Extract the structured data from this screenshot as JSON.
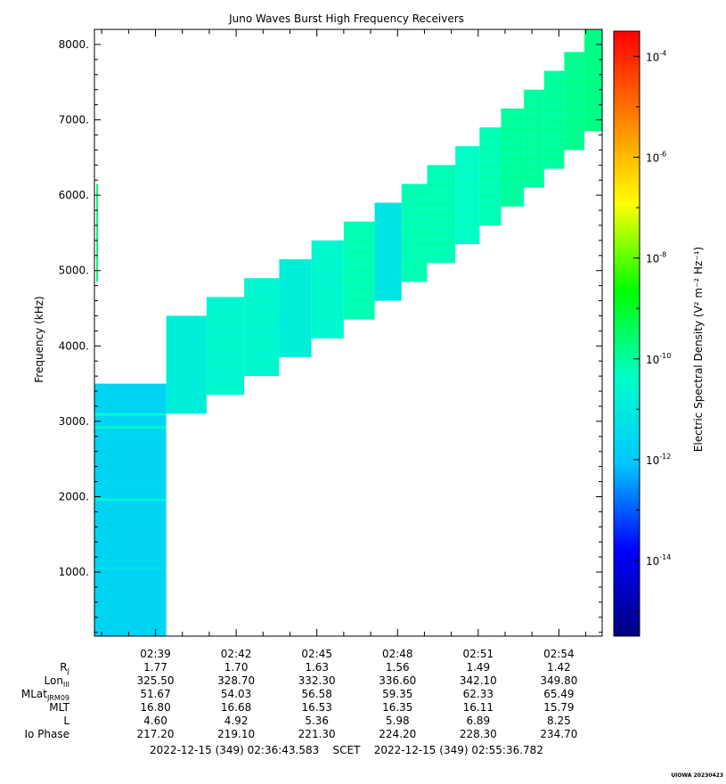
{
  "chart_data": {
    "type": "heatmap",
    "title": "Juno Waves Burst High Frequency Receivers",
    "ylabel": "Frequency (kHz)",
    "ylim": [
      150,
      8200
    ],
    "yticks": [
      1000,
      2000,
      3000,
      4000,
      5000,
      6000,
      7000,
      8000
    ],
    "ytick_labels": [
      "1000.",
      "2000.",
      "3000.",
      "4000.",
      "5000.",
      "6000.",
      "7000.",
      "8000."
    ],
    "x_range_minutes": [
      156.73,
      175.61
    ],
    "xtick_labels": [
      "02:39",
      "02:42",
      "02:45",
      "02:48",
      "02:51",
      "02:54"
    ],
    "colorbar": {
      "label": "Electric Spectral Density (V² m⁻² Hz⁻¹)",
      "log_range": [
        -15.5,
        -3.5
      ],
      "ticks": [
        {
          "base": "10",
          "exp": "-4",
          "log": -4
        },
        {
          "base": "10",
          "exp": "-6",
          "log": -6
        },
        {
          "base": "10",
          "exp": "-8",
          "log": -8
        },
        {
          "base": "10",
          "exp": "-10",
          "log": -10
        },
        {
          "base": "10",
          "exp": "-12",
          "log": -12
        },
        {
          "base": "10",
          "exp": "-14",
          "log": -14
        }
      ],
      "colors": [
        "#000080",
        "#0000ff",
        "#00c8ff",
        "#00ffc8",
        "#00ff00",
        "#ffff00",
        "#ff8000",
        "#ff0000"
      ]
    },
    "blocks": [
      {
        "t0": 156.73,
        "t1": 159.4,
        "f0": 150,
        "f1": 3500,
        "log": -11.7
      },
      {
        "t0": 159.4,
        "t1": 160.9,
        "f0": 3100,
        "f1": 4400,
        "log": -10.9
      },
      {
        "t0": 160.9,
        "t1": 162.3,
        "f0": 3350,
        "f1": 4650,
        "log": -10.6
      },
      {
        "t0": 162.3,
        "t1": 163.6,
        "f0": 3600,
        "f1": 4900,
        "log": -10.6
      },
      {
        "t0": 163.6,
        "t1": 164.8,
        "f0": 3850,
        "f1": 5150,
        "log": -10.9
      },
      {
        "t0": 164.8,
        "t1": 166.0,
        "f0": 4100,
        "f1": 5400,
        "log": -10.6
      },
      {
        "t0": 166.0,
        "t1": 167.15,
        "f0": 4350,
        "f1": 5650,
        "log": -10.2
      },
      {
        "t0": 167.15,
        "t1": 168.15,
        "f0": 4600,
        "f1": 5900,
        "log": -11.2
      },
      {
        "t0": 168.15,
        "t1": 169.1,
        "f0": 4850,
        "f1": 6150,
        "log": -10.2
      },
      {
        "t0": 169.1,
        "t1": 170.15,
        "f0": 5100,
        "f1": 6400,
        "log": -10.2
      },
      {
        "t0": 170.15,
        "t1": 171.05,
        "f0": 5350,
        "f1": 6650,
        "log": -10.4
      },
      {
        "t0": 171.05,
        "t1": 171.85,
        "f0": 5600,
        "f1": 6900,
        "log": -10.2
      },
      {
        "t0": 171.85,
        "t1": 172.7,
        "f0": 5850,
        "f1": 7150,
        "log": -10.0
      },
      {
        "t0": 172.7,
        "t1": 173.45,
        "f0": 6100,
        "f1": 7400,
        "log": -10.0
      },
      {
        "t0": 173.45,
        "t1": 174.2,
        "f0": 6350,
        "f1": 7650,
        "log": -10.0
      },
      {
        "t0": 174.2,
        "t1": 174.95,
        "f0": 6600,
        "f1": 7900,
        "log": -9.9
      },
      {
        "t0": 174.95,
        "t1": 175.61,
        "f0": 6850,
        "f1": 8200,
        "log": -9.8
      }
    ],
    "lines": [
      {
        "t0": 156.73,
        "t1": 159.4,
        "f": 2920,
        "log": -10.6
      },
      {
        "t0": 156.73,
        "t1": 159.4,
        "f": 3090,
        "log": -10.4
      },
      {
        "t0": 156.73,
        "t1": 159.4,
        "f": 1960,
        "log": -10.8
      },
      {
        "t0": 156.73,
        "t1": 159.4,
        "f": 1050,
        "log": -11.3
      }
    ],
    "spikes": [
      {
        "t": 156.83,
        "f0": 4850,
        "f1": 6150,
        "log": -9.6
      }
    ],
    "ephemeris": {
      "labels": [
        {
          "main": "R",
          "sub": "J"
        },
        {
          "main": "Lon",
          "sub": "III"
        },
        {
          "main": "MLat",
          "sub": "JRM09"
        },
        {
          "main": "MLT",
          "sub": ""
        },
        {
          "main": "L",
          "sub": ""
        },
        {
          "main": "Io Phase",
          "sub": ""
        }
      ],
      "columns": [
        [
          "1.77",
          "325.50",
          "51.67",
          "16.80",
          "4.60",
          "217.20"
        ],
        [
          "1.70",
          "328.70",
          "54.03",
          "16.68",
          "4.92",
          "219.10"
        ],
        [
          "1.63",
          "332.30",
          "56.58",
          "16.53",
          "5.36",
          "221.30"
        ],
        [
          "1.56",
          "336.60",
          "59.35",
          "16.35",
          "5.98",
          "224.20"
        ],
        [
          "1.49",
          "342.10",
          "62.33",
          "16.11",
          "6.89",
          "228.30"
        ],
        [
          "1.42",
          "349.80",
          "65.49",
          "15.79",
          "8.25",
          "234.70"
        ]
      ]
    },
    "time_span": "2022-12-15 (349) 02:36:43.583    SCET    2022-12-15 (349) 02:55:36.782",
    "credit": "UIOWA 20230423"
  }
}
